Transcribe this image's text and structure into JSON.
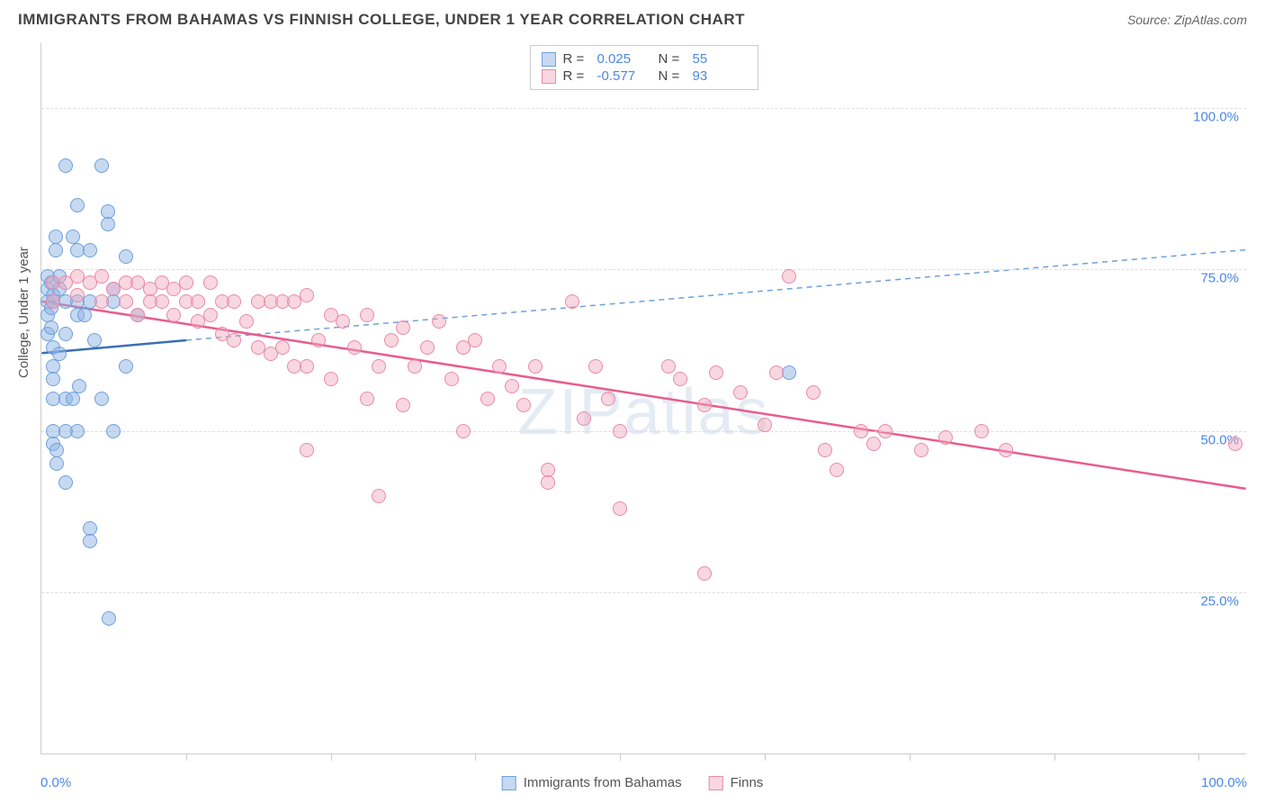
{
  "title": "IMMIGRANTS FROM BAHAMAS VS FINNISH COLLEGE, UNDER 1 YEAR CORRELATION CHART",
  "source": "Source: ZipAtlas.com",
  "watermark": "ZIPatlas",
  "ylabel": "College, Under 1 year",
  "chart": {
    "type": "scatter",
    "xlim": [
      0,
      100
    ],
    "ylim": [
      0,
      110
    ],
    "yticks": [
      25,
      50,
      75,
      100
    ],
    "ytick_labels": [
      "25.0%",
      "50.0%",
      "75.0%",
      "100.0%"
    ],
    "xticks": [
      12,
      24,
      36,
      48,
      60,
      72,
      84,
      96
    ],
    "xlim_labels": {
      "min": "0.0%",
      "max": "100.0%"
    },
    "marker_size": 16,
    "background_color": "#ffffff",
    "grid_color": "#dddddd",
    "axis_color": "#cccccc",
    "series": [
      {
        "name": "Immigrants from Bahamas",
        "color_fill": "rgba(142,180,227,0.5)",
        "color_stroke": "#6ea0dc",
        "R": "0.025",
        "N": "55",
        "trend_solid": {
          "x1": 0,
          "y1": 62,
          "x2": 12,
          "y2": 64,
          "stroke": "#3b6fb5",
          "width": 2.5
        },
        "trend_dashed": {
          "x1": 12,
          "y1": 64,
          "x2": 100,
          "y2": 78,
          "stroke": "#6ea0dc",
          "width": 1.5,
          "dash": "6,5"
        },
        "points": [
          [
            0.5,
            70
          ],
          [
            0.5,
            72
          ],
          [
            0.5,
            68
          ],
          [
            0.5,
            65
          ],
          [
            0.5,
            74
          ],
          [
            0.8,
            73
          ],
          [
            0.8,
            69
          ],
          [
            0.8,
            66
          ],
          [
            1,
            70
          ],
          [
            1,
            71
          ],
          [
            1,
            63
          ],
          [
            1,
            60
          ],
          [
            1,
            58
          ],
          [
            1,
            55
          ],
          [
            1,
            50
          ],
          [
            1,
            48
          ],
          [
            1.3,
            47
          ],
          [
            1.3,
            45
          ],
          [
            1.5,
            62
          ],
          [
            1.5,
            72
          ],
          [
            1.5,
            74
          ],
          [
            2,
            91
          ],
          [
            2,
            70
          ],
          [
            2,
            65
          ],
          [
            2,
            55
          ],
          [
            2,
            50
          ],
          [
            2,
            42
          ],
          [
            2.6,
            80
          ],
          [
            3,
            78
          ],
          [
            3,
            70
          ],
          [
            3,
            68
          ],
          [
            3,
            85
          ],
          [
            3,
            50
          ],
          [
            3.6,
            68
          ],
          [
            4,
            70
          ],
          [
            4,
            35
          ],
          [
            4,
            33
          ],
          [
            5,
            55
          ],
          [
            5,
            91
          ],
          [
            5.5,
            82
          ],
          [
            5.5,
            84
          ],
          [
            6,
            72
          ],
          [
            6,
            70
          ],
          [
            6,
            50
          ],
          [
            7,
            77
          ],
          [
            7,
            60
          ],
          [
            8,
            68
          ],
          [
            5.6,
            21
          ],
          [
            4,
            78
          ],
          [
            1.2,
            78
          ],
          [
            1.2,
            80
          ],
          [
            2.6,
            55
          ],
          [
            3.1,
            57
          ],
          [
            4.4,
            64
          ],
          [
            62,
            59
          ]
        ]
      },
      {
        "name": "Finns",
        "color_fill": "rgba(242,166,187,0.45)",
        "color_stroke": "#e88aa8",
        "R": "-0.577",
        "N": "93",
        "trend_solid": {
          "x1": 0,
          "y1": 70,
          "x2": 100,
          "y2": 41,
          "stroke": "#e85d8c",
          "width": 2.5
        },
        "points": [
          [
            1,
            73
          ],
          [
            1,
            70
          ],
          [
            2,
            73
          ],
          [
            3,
            74
          ],
          [
            3,
            71
          ],
          [
            4,
            73
          ],
          [
            5,
            74
          ],
          [
            5,
            70
          ],
          [
            6,
            72
          ],
          [
            7,
            73
          ],
          [
            7,
            70
          ],
          [
            8,
            73
          ],
          [
            8,
            68
          ],
          [
            9,
            72
          ],
          [
            9,
            70
          ],
          [
            10,
            73
          ],
          [
            10,
            70
          ],
          [
            11,
            72
          ],
          [
            11,
            68
          ],
          [
            12,
            73
          ],
          [
            12,
            70
          ],
          [
            13,
            70
          ],
          [
            13,
            67
          ],
          [
            14,
            73
          ],
          [
            14,
            68
          ],
          [
            15,
            70
          ],
          [
            15,
            65
          ],
          [
            16,
            70
          ],
          [
            16,
            64
          ],
          [
            17,
            67
          ],
          [
            18,
            70
          ],
          [
            18,
            63
          ],
          [
            19,
            70
          ],
          [
            19,
            62
          ],
          [
            20,
            70
          ],
          [
            20,
            63
          ],
          [
            21,
            70
          ],
          [
            21,
            60
          ],
          [
            22,
            71
          ],
          [
            22,
            60
          ],
          [
            23,
            64
          ],
          [
            24,
            68
          ],
          [
            24,
            58
          ],
          [
            25,
            67
          ],
          [
            26,
            63
          ],
          [
            27,
            68
          ],
          [
            27,
            55
          ],
          [
            28,
            60
          ],
          [
            29,
            64
          ],
          [
            30,
            66
          ],
          [
            30,
            54
          ],
          [
            31,
            60
          ],
          [
            32,
            63
          ],
          [
            33,
            67
          ],
          [
            34,
            58
          ],
          [
            35,
            63
          ],
          [
            35,
            50
          ],
          [
            36,
            64
          ],
          [
            37,
            55
          ],
          [
            38,
            60
          ],
          [
            39,
            57
          ],
          [
            40,
            54
          ],
          [
            41,
            60
          ],
          [
            42,
            44
          ],
          [
            42,
            42
          ],
          [
            44,
            70
          ],
          [
            45,
            52
          ],
          [
            46,
            60
          ],
          [
            47,
            55
          ],
          [
            48,
            50
          ],
          [
            48,
            38
          ],
          [
            52,
            60
          ],
          [
            53,
            58
          ],
          [
            55,
            54
          ],
          [
            55,
            28
          ],
          [
            56,
            59
          ],
          [
            58,
            56
          ],
          [
            60,
            51
          ],
          [
            61,
            59
          ],
          [
            62,
            74
          ],
          [
            64,
            56
          ],
          [
            65,
            47
          ],
          [
            66,
            44
          ],
          [
            68,
            50
          ],
          [
            69,
            48
          ],
          [
            70,
            50
          ],
          [
            73,
            47
          ],
          [
            75,
            49
          ],
          [
            78,
            50
          ],
          [
            80,
            47
          ],
          [
            22,
            47
          ],
          [
            28,
            40
          ],
          [
            99,
            48
          ]
        ]
      }
    ]
  },
  "bottom_legend": [
    {
      "swatch": "blue",
      "label": "Immigrants from Bahamas"
    },
    {
      "swatch": "pink",
      "label": "Finns"
    }
  ]
}
